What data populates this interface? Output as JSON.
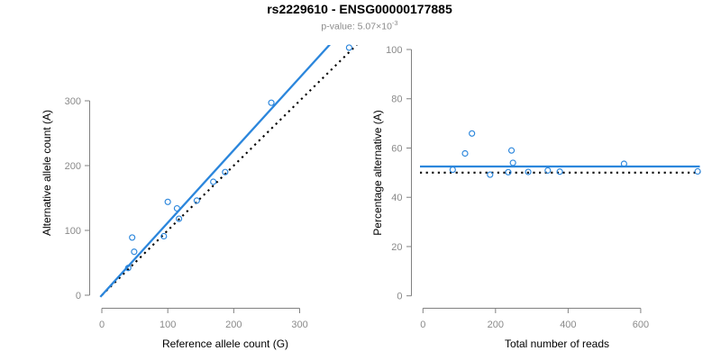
{
  "header": {
    "title": "rs2229610 - ENSG00000177885",
    "subtitle_label": "p-value: ",
    "subtitle_base": "5.07×10",
    "subtitle_exponent": "-3"
  },
  "colors": {
    "accent_blue": "#2b86dc",
    "null_line": "#000000",
    "axis_line": "#818181",
    "tick_label": "#8a8a8a",
    "axis_title": "#000000",
    "title": "#000000",
    "subtitle": "#8a8a8a",
    "background": "#ffffff"
  },
  "chart_data": [
    {
      "type": "scatter",
      "panel": "left",
      "xlabel": "Reference allele count (G)",
      "ylabel": "Alternative allele count (A)",
      "xticks": [
        0,
        100,
        200,
        300
      ],
      "yticks": [
        0,
        100,
        200,
        300
      ],
      "xlim": [
        0,
        390
      ],
      "ylim": [
        0,
        385
      ],
      "grid": false,
      "legend": "none",
      "marker": "open-circle",
      "points": [
        [
          40,
          42
        ],
        [
          49,
          67
        ],
        [
          46,
          89
        ],
        [
          94,
          91
        ],
        [
          117,
          118
        ],
        [
          114,
          134
        ],
        [
          100,
          144
        ],
        [
          144,
          146
        ],
        [
          169,
          175
        ],
        [
          187,
          190
        ],
        [
          257,
          297
        ],
        [
          375,
          382
        ]
      ],
      "lines": [
        {
          "name": "fitted-ratio",
          "style": "solid",
          "color_key": "accent_blue",
          "slope": 1.119,
          "intercept": 0
        },
        {
          "name": "identity-50-50",
          "style": "dotted",
          "color_key": "null_line",
          "slope": 1,
          "intercept": 0
        }
      ]
    },
    {
      "type": "scatter",
      "panel": "right",
      "xlabel": "Total number of reads",
      "ylabel": "Percentage alternative (A)",
      "xticks": [
        0,
        200,
        400,
        600
      ],
      "yticks": [
        0,
        20,
        40,
        60,
        80,
        100
      ],
      "xlim": [
        0,
        790
      ],
      "ylim": [
        0,
        100
      ],
      "grid": false,
      "legend": "none",
      "marker": "open-circle",
      "points": [
        [
          82,
          51.2
        ],
        [
          116,
          57.8
        ],
        [
          135,
          65.9
        ],
        [
          185,
          49.2
        ],
        [
          235,
          50.2
        ],
        [
          248,
          54.0
        ],
        [
          244,
          59.0
        ],
        [
          290,
          50.3
        ],
        [
          344,
          50.9
        ],
        [
          377,
          50.4
        ],
        [
          554,
          53.6
        ],
        [
          757,
          50.5
        ]
      ],
      "lines": [
        {
          "name": "fitted-percentage",
          "style": "solid",
          "color_key": "accent_blue",
          "y": 52.5
        },
        {
          "name": "null-50-percent",
          "style": "dotted",
          "color_key": "null_line",
          "y": 50
        }
      ]
    }
  ]
}
